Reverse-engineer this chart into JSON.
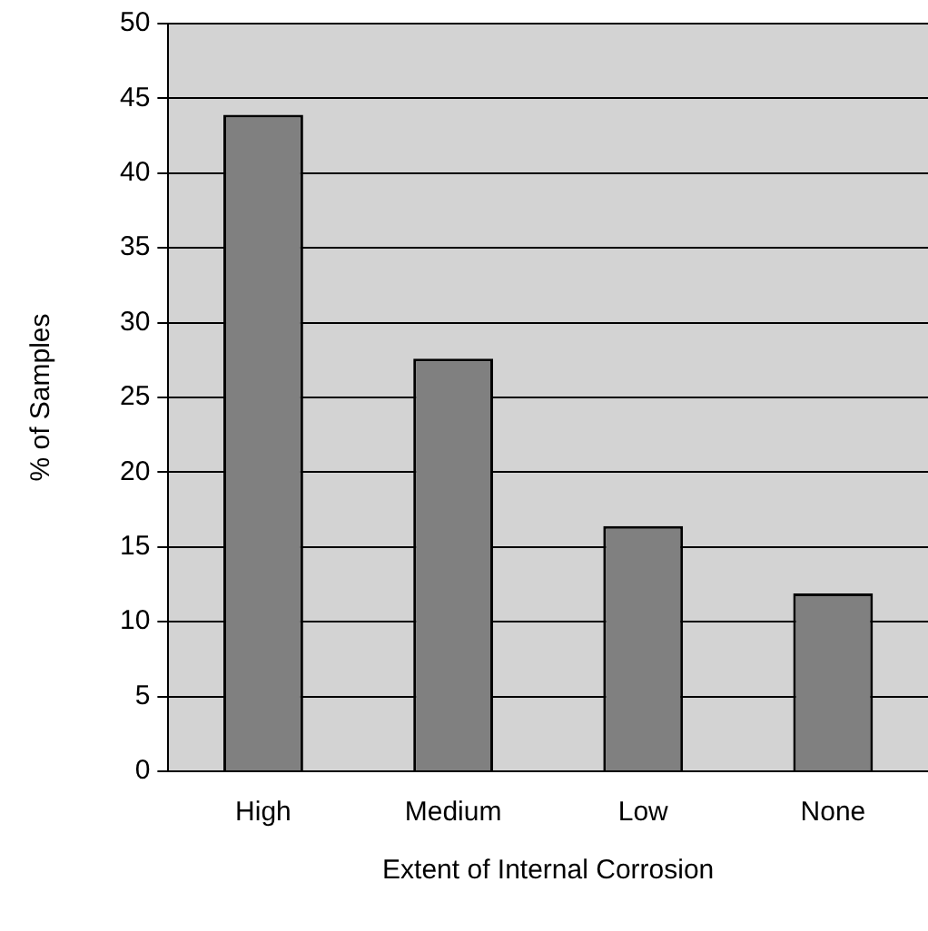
{
  "chart_data": {
    "type": "bar",
    "xlabel": "Extent of Internal Corrosion",
    "ylabel": "% of Samples",
    "categories": [
      "High",
      "Medium",
      "Low",
      "None"
    ],
    "values": [
      43.9,
      27.6,
      16.4,
      11.9
    ],
    "color": "#808080",
    "ylim": [
      0,
      50
    ],
    "yticks": [
      0,
      5,
      10,
      15,
      20,
      25,
      30,
      35,
      40,
      45,
      50
    ],
    "grid": "y",
    "legend": false
  }
}
